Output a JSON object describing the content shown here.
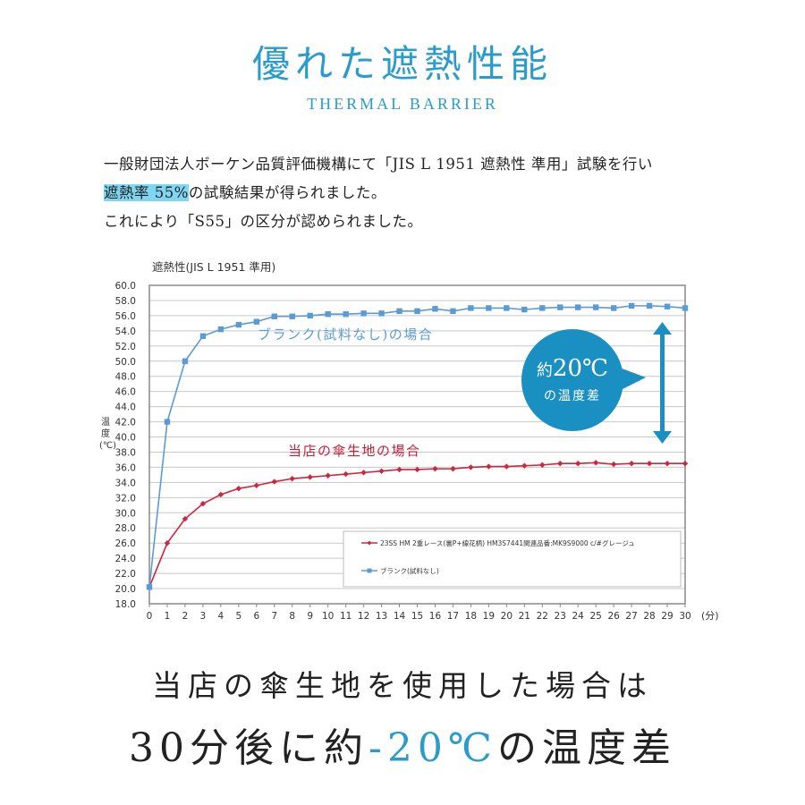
{
  "header": {
    "title": "優れた遮熱性能",
    "subtitle": "THERMAL BARRIER"
  },
  "description": {
    "line1": "一般財団法人ボーケン品質評価機構にて「JIS L 1951 遮熱性 準用」試験を行い",
    "line2_highlight": "遮熱率 55%",
    "line2_rest": "の試験結果が得られました。",
    "line3": "これにより「S55」の区分が認められました。"
  },
  "callout": {
    "line1_prefix": "約",
    "line1_value": "20℃",
    "line2": "の温度差",
    "color": "#1a8fc2"
  },
  "annotations": {
    "blank": "ブランク(試料なし)の場合",
    "fabric": "当店の傘生地の場合"
  },
  "bottom": {
    "line1": "当店の傘生地を使用した場合は",
    "line2_prefix": "30分後に約",
    "line2_accent": "-20℃",
    "line2_suffix": "の温度差"
  },
  "chart_data": {
    "type": "line",
    "title": "遮熱性(JIS L 1951 準用)",
    "xlabel": "(分)",
    "ylabel": "温度(℃)",
    "ylim": [
      18.0,
      60.0
    ],
    "yticks": [
      "18.0",
      "20.0",
      "22.0",
      "24.0",
      "26.0",
      "28.0",
      "30.0",
      "32.0",
      "34.0",
      "36.0",
      "38.0",
      "40.0",
      "42.0",
      "44.0",
      "46.0",
      "48.0",
      "50.0",
      "52.0",
      "54.0",
      "56.0",
      "58.0",
      "60.0"
    ],
    "x": [
      0,
      1,
      2,
      3,
      4,
      5,
      6,
      7,
      8,
      9,
      10,
      11,
      12,
      13,
      14,
      15,
      16,
      17,
      18,
      19,
      20,
      21,
      22,
      23,
      24,
      25,
      26,
      27,
      28,
      29,
      30
    ],
    "grid": true,
    "legend_position": "lower right inside",
    "series": [
      {
        "name": "23SS HM 2重レース(裏P+線花柄) HM3S7441関連品番:MK9S9000 c/#グレージュ",
        "color": "#d0253f",
        "marker": "diamond",
        "values": [
          20.2,
          26.0,
          29.2,
          31.2,
          32.4,
          33.2,
          33.6,
          34.1,
          34.5,
          34.7,
          34.9,
          35.1,
          35.3,
          35.5,
          35.7,
          35.7,
          35.8,
          35.8,
          36.0,
          36.1,
          36.1,
          36.2,
          36.3,
          36.5,
          36.5,
          36.6,
          36.4,
          36.5,
          36.5,
          36.5,
          36.5
        ]
      },
      {
        "name": "ブランク(試料なし)",
        "color": "#5b9bd5",
        "marker": "square",
        "values": [
          20.2,
          42.0,
          50.0,
          53.3,
          54.2,
          54.8,
          55.2,
          55.9,
          55.9,
          56.0,
          56.2,
          56.2,
          56.3,
          56.3,
          56.6,
          56.6,
          56.9,
          56.6,
          57.0,
          57.0,
          57.0,
          56.8,
          57.0,
          57.1,
          57.1,
          57.1,
          57.0,
          57.3,
          57.3,
          57.2,
          57.0
        ]
      }
    ]
  }
}
